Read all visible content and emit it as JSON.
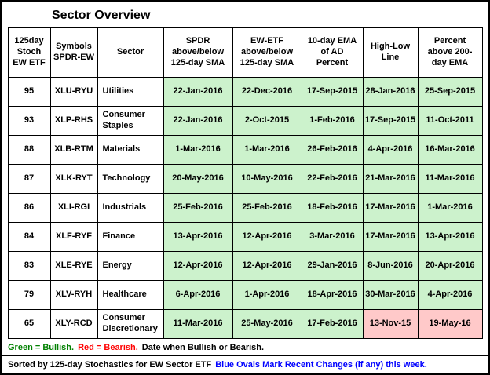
{
  "chart_data": {
    "type": "table",
    "title": "Sector Overview",
    "columns": [
      "125day\nStoch\nEW ETF",
      "Symbols\nSPDR-EW",
      "Sector",
      "SPDR\nabove/below\n125-day SMA",
      "EW-ETF\nabove/below\n125-day SMA",
      "10-day EMA\nof AD\nPercent",
      "High-Low\nLine",
      "Percent\nabove 200-\nday EMA"
    ],
    "rows": [
      {
        "cells": [
          {
            "v": "95",
            "s": "plain"
          },
          {
            "v": "XLU-RYU",
            "s": "plain"
          },
          {
            "v": "Utilities",
            "s": "plain"
          },
          {
            "v": "22-Jan-2016",
            "s": "green"
          },
          {
            "v": "22-Dec-2016",
            "s": "green"
          },
          {
            "v": "17-Sep-2015",
            "s": "green"
          },
          {
            "v": "28-Jan-2016",
            "s": "green"
          },
          {
            "v": "25-Sep-2015",
            "s": "green"
          }
        ]
      },
      {
        "cells": [
          {
            "v": "93",
            "s": "plain"
          },
          {
            "v": "XLP-RHS",
            "s": "plain"
          },
          {
            "v": "Consumer Staples",
            "s": "plain"
          },
          {
            "v": "22-Jan-2016",
            "s": "green"
          },
          {
            "v": "2-Oct-2015",
            "s": "green"
          },
          {
            "v": "1-Feb-2016",
            "s": "green"
          },
          {
            "v": "17-Sep-2015",
            "s": "green"
          },
          {
            "v": "11-Oct-2011",
            "s": "green"
          }
        ]
      },
      {
        "cells": [
          {
            "v": "88",
            "s": "plain"
          },
          {
            "v": "XLB-RTM",
            "s": "plain"
          },
          {
            "v": "Materials",
            "s": "plain"
          },
          {
            "v": "1-Mar-2016",
            "s": "green"
          },
          {
            "v": "1-Mar-2016",
            "s": "green"
          },
          {
            "v": "26-Feb-2016",
            "s": "green"
          },
          {
            "v": "4-Apr-2016",
            "s": "green"
          },
          {
            "v": "16-Mar-2016",
            "s": "green"
          }
        ]
      },
      {
        "cells": [
          {
            "v": "87",
            "s": "plain"
          },
          {
            "v": "XLK-RYT",
            "s": "plain"
          },
          {
            "v": "Technology",
            "s": "plain"
          },
          {
            "v": "20-May-2016",
            "s": "green"
          },
          {
            "v": "10-May-2016",
            "s": "green"
          },
          {
            "v": "22-Feb-2016",
            "s": "green"
          },
          {
            "v": "21-Mar-2016",
            "s": "green"
          },
          {
            "v": "11-Mar-2016",
            "s": "green"
          }
        ]
      },
      {
        "cells": [
          {
            "v": "86",
            "s": "plain"
          },
          {
            "v": "XLI-RGI",
            "s": "plain"
          },
          {
            "v": "Industrials",
            "s": "plain"
          },
          {
            "v": "25-Feb-2016",
            "s": "green"
          },
          {
            "v": "25-Feb-2016",
            "s": "green"
          },
          {
            "v": "18-Feb-2016",
            "s": "green"
          },
          {
            "v": "17-Mar-2016",
            "s": "green"
          },
          {
            "v": "1-Mar-2016",
            "s": "green"
          }
        ]
      },
      {
        "cells": [
          {
            "v": "84",
            "s": "plain"
          },
          {
            "v": "XLF-RYF",
            "s": "plain"
          },
          {
            "v": "Finance",
            "s": "plain"
          },
          {
            "v": "13-Apr-2016",
            "s": "green"
          },
          {
            "v": "12-Apr-2016",
            "s": "green"
          },
          {
            "v": "3-Mar-2016",
            "s": "green"
          },
          {
            "v": "17-Mar-2016",
            "s": "green"
          },
          {
            "v": "13-Apr-2016",
            "s": "green"
          }
        ]
      },
      {
        "cells": [
          {
            "v": "83",
            "s": "plain"
          },
          {
            "v": "XLE-RYE",
            "s": "plain"
          },
          {
            "v": "Energy",
            "s": "plain"
          },
          {
            "v": "12-Apr-2016",
            "s": "green"
          },
          {
            "v": "12-Apr-2016",
            "s": "green"
          },
          {
            "v": "29-Jan-2016",
            "s": "green"
          },
          {
            "v": "8-Jun-2016",
            "s": "green"
          },
          {
            "v": "20-Apr-2016",
            "s": "green"
          }
        ]
      },
      {
        "cells": [
          {
            "v": "79",
            "s": "plain"
          },
          {
            "v": "XLV-RYH",
            "s": "plain"
          },
          {
            "v": "Healthcare",
            "s": "plain"
          },
          {
            "v": "6-Apr-2016",
            "s": "green"
          },
          {
            "v": "1-Apr-2016",
            "s": "green"
          },
          {
            "v": "18-Apr-2016",
            "s": "green"
          },
          {
            "v": "30-Mar-2016",
            "s": "green"
          },
          {
            "v": "4-Apr-2016",
            "s": "green"
          }
        ]
      },
      {
        "cells": [
          {
            "v": "65",
            "s": "plain"
          },
          {
            "v": "XLY-RCD",
            "s": "plain"
          },
          {
            "v": "Consumer Discretionary",
            "s": "plain"
          },
          {
            "v": "11-Mar-2016",
            "s": "green"
          },
          {
            "v": "25-May-2016",
            "s": "green"
          },
          {
            "v": "17-Feb-2016",
            "s": "green"
          },
          {
            "v": "13-Nov-15",
            "s": "red"
          },
          {
            "v": "19-May-16",
            "s": "red"
          }
        ]
      }
    ]
  },
  "legend": {
    "green_text": "Green = Bullish.",
    "red_text": "Red = Bearish.",
    "rest_text": "Date when Bullish or Bearish.",
    "sorted_note": "Sorted by 125-day Stochastics for EW Sector ETF",
    "blue_note": "Blue Ovals Mark Recent Changes (if any) this week."
  },
  "colors": {
    "bullish_bg": "#ccf2cc",
    "bearish_bg": "#ffc9c9",
    "bullish_text": "#008000",
    "bearish_text": "#ff0000",
    "note_blue": "#0000ff"
  }
}
